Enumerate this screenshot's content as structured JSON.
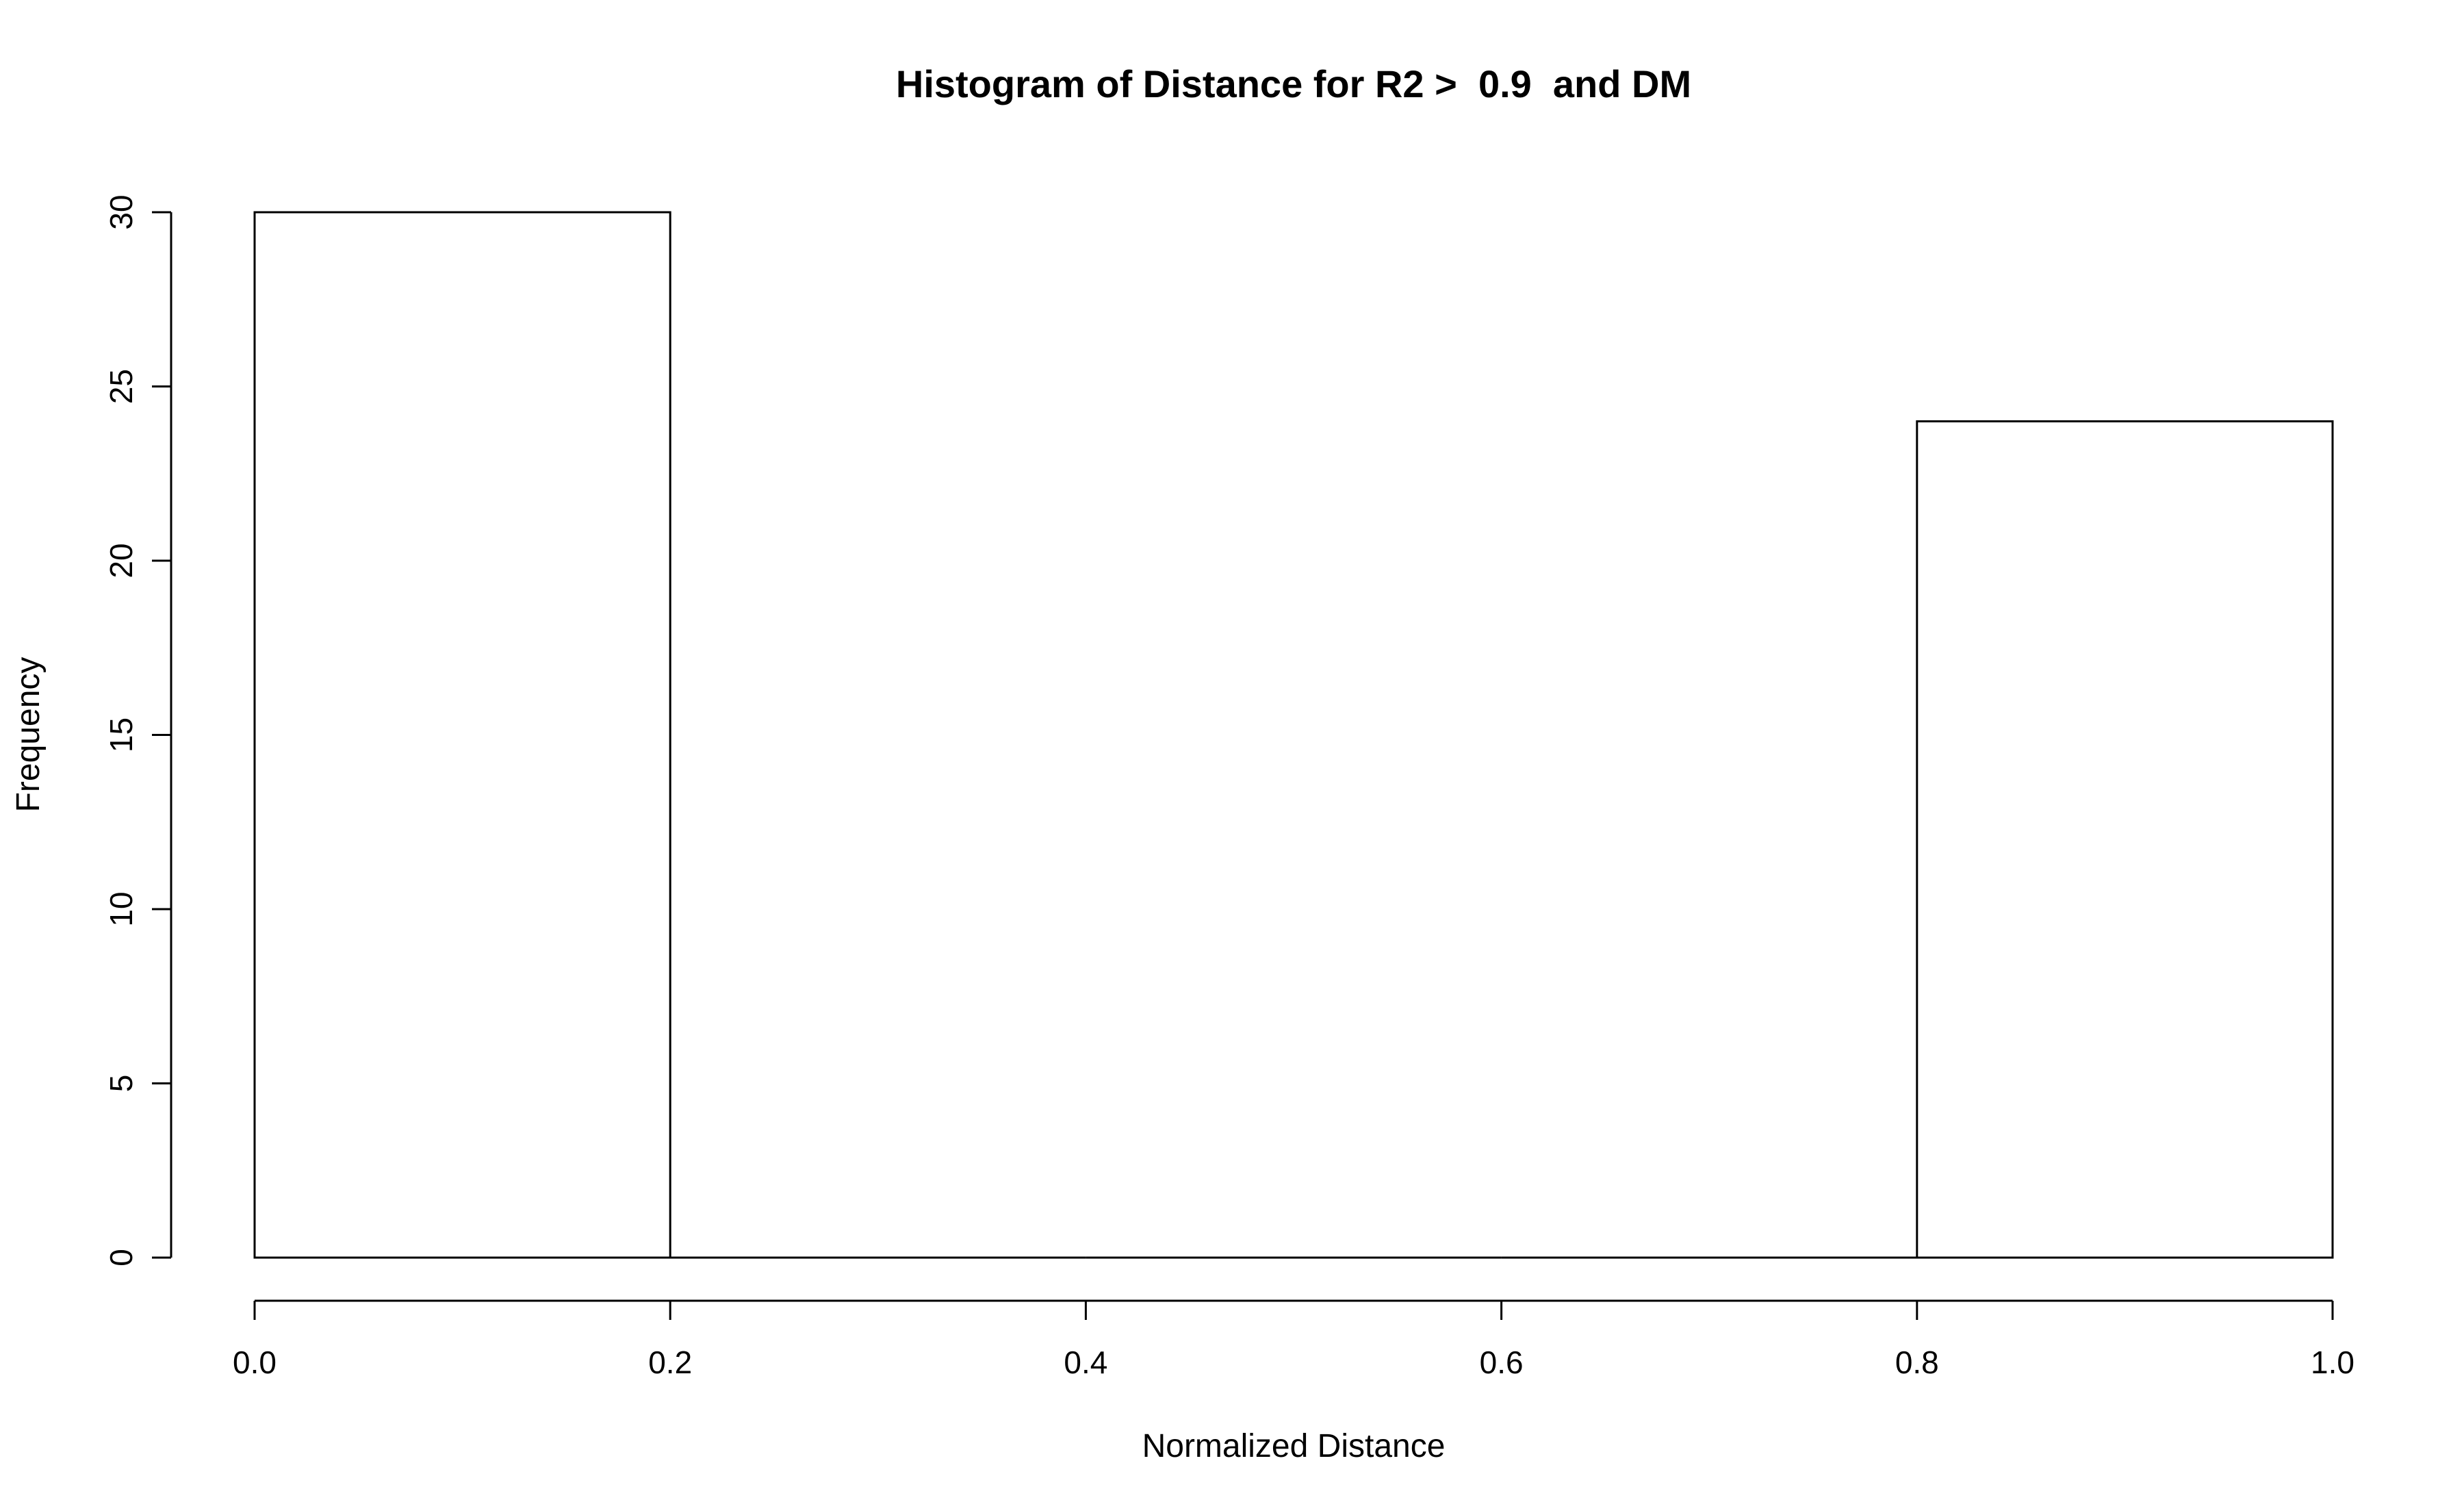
{
  "chart_data": {
    "type": "bar",
    "subtype": "histogram",
    "title": "Histogram of Distance for R2 >  0.9  and DM",
    "xlabel": "Normalized Distance",
    "ylabel": "Frequency",
    "bins": [
      {
        "start": 0.0,
        "end": 0.2,
        "count": 30
      },
      {
        "start": 0.2,
        "end": 0.4,
        "count": 0
      },
      {
        "start": 0.4,
        "end": 0.6,
        "count": 0
      },
      {
        "start": 0.6,
        "end": 0.8,
        "count": 0
      },
      {
        "start": 0.8,
        "end": 1.0,
        "count": 24
      }
    ],
    "xlim": [
      0.0,
      1.0
    ],
    "ylim": [
      0,
      30
    ],
    "x_ticks": [
      "0.0",
      "0.2",
      "0.4",
      "0.6",
      "0.8",
      "1.0"
    ],
    "y_ticks": [
      "0",
      "5",
      "10",
      "15",
      "20",
      "25",
      "30"
    ],
    "grid": false,
    "bar_fill": "#ffffff",
    "bar_stroke": "#000000"
  }
}
